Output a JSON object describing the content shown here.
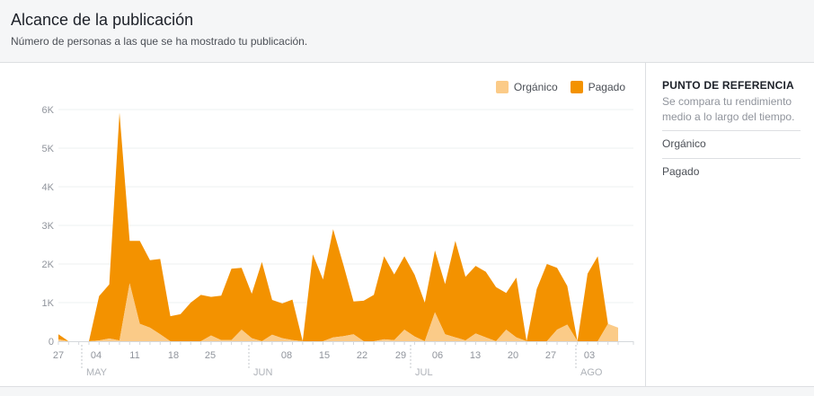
{
  "header": {
    "title": "Alcance de la publicación",
    "subtitle": "Número de personas a las que se ha mostrado tu publicación."
  },
  "colors": {
    "organic": "#fbcb88",
    "paid": "#f39200",
    "grid": "#eef0f2",
    "axis_text": "#90949c"
  },
  "sidebar": {
    "title": "PUNTO DE REFERENCIA",
    "description": "Se compara tu rendimiento medio a lo largo del tiempo.",
    "rows": [
      "Orgánico",
      "Pagado"
    ]
  },
  "chart_data": {
    "type": "area",
    "stacked": true,
    "title": "",
    "xlabel": "",
    "ylabel": "",
    "ylim": [
      0,
      6000
    ],
    "y_ticks": [
      "0",
      "1K",
      "2K",
      "3K",
      "4K",
      "5K",
      "6K"
    ],
    "x_tick_labels": [
      "27",
      "04",
      "11",
      "18",
      "25",
      "08",
      "15",
      "22",
      "29",
      "06",
      "13",
      "20",
      "27",
      "03"
    ],
    "month_labels": [
      "MAY",
      "JUN",
      "JUL",
      "AGO"
    ],
    "legend": {
      "placement": "top-right",
      "entries": [
        "Orgánico",
        "Pagado"
      ]
    },
    "grid": true,
    "series": [
      {
        "name": "Orgánico",
        "values": [
          50,
          0,
          0,
          0,
          20,
          70,
          20,
          1500,
          450,
          350,
          180,
          0,
          0,
          0,
          0,
          150,
          30,
          30,
          300,
          80,
          0,
          170,
          80,
          30,
          0,
          0,
          0,
          100,
          130,
          180,
          0,
          0,
          50,
          30,
          300,
          120,
          0,
          750,
          180,
          100,
          20,
          200,
          100,
          0,
          300,
          100,
          0,
          0,
          0,
          300,
          430,
          0,
          0,
          0,
          450,
          350
        ]
      },
      {
        "name": "Pagado",
        "values": [
          130,
          0,
          0,
          0,
          1150,
          1400,
          5900,
          1100,
          2150,
          1750,
          1950,
          650,
          700,
          1000,
          1200,
          1000,
          1150,
          1850,
          1600,
          1150,
          2050,
          900,
          900,
          1050,
          0,
          2250,
          1600,
          2800,
          1850,
          850,
          1050,
          1200,
          2150,
          1700,
          1900,
          1600,
          1000,
          1600,
          1300,
          2500,
          1650,
          1750,
          1700,
          1400,
          950,
          1550,
          0,
          1350,
          2000,
          1600,
          1000,
          0,
          1750,
          2200,
          0,
          0
        ]
      }
    ]
  }
}
